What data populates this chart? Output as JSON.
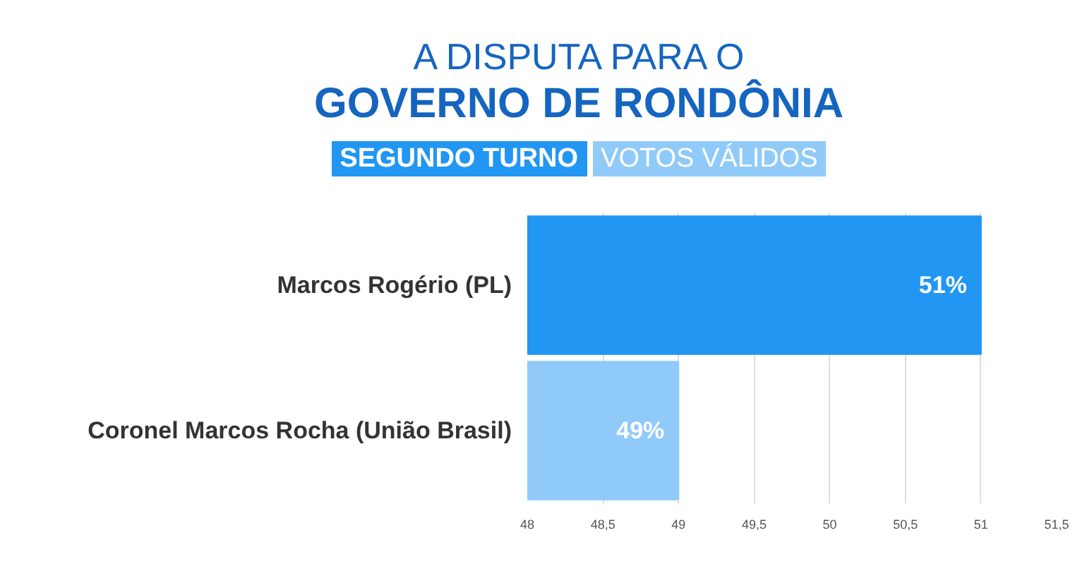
{
  "chart_data": {
    "type": "bar",
    "orientation": "horizontal",
    "title": "A DISPUTA PARA O",
    "subtitle": "GOVERNO DE RONDÔNIA",
    "annotations": [
      "SEGUNDO TURNO",
      "VOTOS VÁLIDOS"
    ],
    "categories": [
      "Marcos Rogério (PL)",
      "Coronel Marcos Rocha (União Brasil)"
    ],
    "values": [
      51,
      49
    ],
    "colors": [
      "#2196f3",
      "#90caf9"
    ],
    "value_labels": [
      "51%",
      "49%"
    ],
    "xlim": [
      48,
      51.5
    ],
    "xticks": [
      48,
      {
        "value": 48.5,
        "label": "48,5"
      },
      49,
      {
        "value": 49.5,
        "label": "49,5"
      },
      50,
      {
        "value": 50.5,
        "label": "50,5"
      },
      51,
      {
        "value": 51.5,
        "label": "51,5"
      }
    ],
    "grid": "x"
  }
}
